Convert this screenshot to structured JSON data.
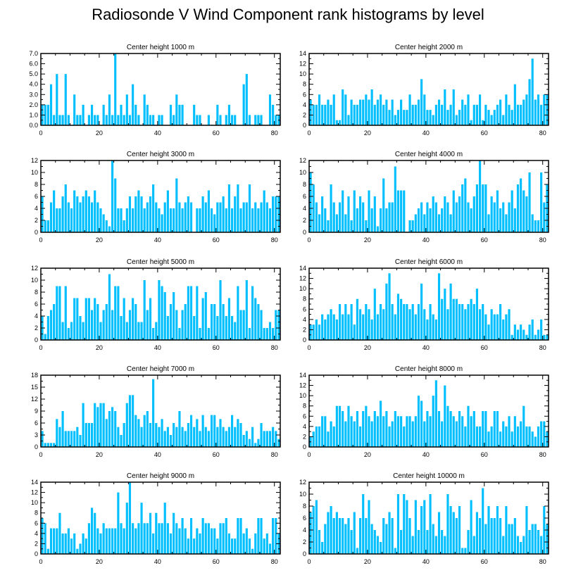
{
  "figure_title": "Radiosonde V Wind Component rank histograms by level",
  "colors": {
    "bar": "#00BFFF",
    "axis": "#000000"
  },
  "chart_data": [
    {
      "type": "bar",
      "title": "Center height 1000 m",
      "xlim": [
        0,
        82
      ],
      "ylim": [
        0,
        7
      ],
      "xticks": [
        0,
        20,
        40,
        60,
        80
      ],
      "yticks": [
        0,
        1,
        2,
        3,
        4,
        5,
        6,
        7
      ],
      "ytick_labels": [
        "0.0",
        "1.0",
        "2.0",
        "3.0",
        "4.0",
        "5.0",
        "6.0",
        "7.0"
      ],
      "values": [
        2,
        2,
        2,
        4,
        1,
        5,
        1,
        1,
        5,
        1,
        0,
        3,
        1,
        1,
        2,
        0,
        1,
        2,
        1,
        1,
        0,
        2,
        1,
        3,
        1,
        7,
        1,
        2,
        1,
        3,
        1,
        4,
        2,
        1,
        0,
        3,
        2,
        1,
        1,
        0,
        1,
        1,
        0,
        0,
        2,
        1,
        3,
        2,
        2,
        0,
        0,
        0,
        2,
        1,
        1,
        0,
        0,
        1,
        0,
        0,
        2,
        1,
        0,
        1,
        2,
        1,
        1,
        0,
        0,
        4,
        5,
        1,
        0,
        1,
        1,
        1,
        0,
        0,
        3,
        2,
        1,
        1
      ],
      "xlabel": "",
      "ylabel": ""
    },
    {
      "type": "bar",
      "title": "Center height 2000 m",
      "xlim": [
        0,
        82
      ],
      "ylim": [
        0,
        14
      ],
      "xticks": [
        0,
        20,
        40,
        60,
        80
      ],
      "yticks": [
        0,
        2,
        4,
        6,
        8,
        10,
        12,
        14
      ],
      "ytick_labels": [
        "0",
        "2",
        "4",
        "6",
        "8",
        "10",
        "12",
        "14"
      ],
      "values": [
        5,
        4,
        4,
        6,
        4,
        4,
        5,
        4,
        6,
        1,
        1,
        7,
        6,
        2,
        5,
        4,
        4,
        5,
        5,
        6,
        5,
        7,
        4,
        5,
        6,
        4,
        5,
        3,
        5,
        2,
        3,
        5,
        3,
        3,
        6,
        4,
        4,
        5,
        9,
        6,
        3,
        3,
        2,
        4,
        5,
        4,
        7,
        3,
        4,
        7,
        2,
        3,
        5,
        4,
        6,
        1,
        4,
        4,
        6,
        1,
        4,
        3,
        2,
        3,
        4,
        5,
        2,
        6,
        4,
        3,
        8,
        4,
        4,
        5,
        6,
        9,
        13,
        5,
        6,
        4,
        6,
        6
      ],
      "xlabel": "",
      "ylabel": ""
    },
    {
      "type": "bar",
      "title": "Center height 3000 m",
      "xlim": [
        0,
        82
      ],
      "ylim": [
        0,
        12
      ],
      "xticks": [
        0,
        20,
        40,
        60,
        80
      ],
      "yticks": [
        0,
        2,
        4,
        6,
        8,
        10,
        12
      ],
      "ytick_labels": [
        "0",
        "2",
        "4",
        "6",
        "8",
        "10",
        "12"
      ],
      "values": [
        6,
        2,
        2,
        5,
        7,
        4,
        4,
        6,
        8,
        5,
        4,
        7,
        6,
        5,
        6,
        7,
        6,
        5,
        7,
        5,
        4,
        3,
        2,
        1,
        12,
        9,
        4,
        4,
        2,
        4,
        6,
        4,
        6,
        7,
        6,
        4,
        5,
        6,
        8,
        5,
        4,
        3,
        5,
        7,
        4,
        4,
        9,
        5,
        4,
        5,
        6,
        5,
        0,
        4,
        4,
        6,
        5,
        7,
        4,
        3,
        5,
        5,
        6,
        4,
        8,
        4,
        6,
        8,
        4,
        5,
        5,
        8,
        4,
        5,
        4,
        5,
        7,
        5,
        4,
        6,
        6,
        6
      ],
      "xlabel": "",
      "ylabel": ""
    },
    {
      "type": "bar",
      "title": "Center height 4000 m",
      "xlim": [
        0,
        82
      ],
      "ylim": [
        0,
        12
      ],
      "xticks": [
        0,
        20,
        40,
        60,
        80
      ],
      "yticks": [
        0,
        2,
        4,
        6,
        8,
        10,
        12
      ],
      "ytick_labels": [
        "0",
        "2",
        "4",
        "6",
        "8",
        "10",
        "12"
      ],
      "values": [
        10,
        8,
        5,
        3,
        6,
        4,
        2,
        8,
        5,
        3,
        5,
        7,
        3,
        6,
        2,
        7,
        4,
        6,
        5,
        2,
        7,
        4,
        6,
        1,
        4,
        9,
        4,
        5,
        5,
        11,
        7,
        7,
        7,
        0,
        2,
        2,
        3,
        4,
        5,
        3,
        5,
        4,
        6,
        5,
        3,
        4,
        6,
        5,
        3,
        7,
        5,
        6,
        8,
        9,
        5,
        4,
        6,
        8,
        12,
        8,
        8,
        3,
        6,
        5,
        7,
        4,
        5,
        3,
        5,
        7,
        4,
        8,
        9,
        7,
        6,
        10,
        3,
        2,
        2,
        10,
        5,
        8
      ],
      "xlabel": "",
      "ylabel": ""
    },
    {
      "type": "bar",
      "title": "Center height 5000 m",
      "xlim": [
        0,
        82
      ],
      "ylim": [
        0,
        12
      ],
      "xticks": [
        0,
        20,
        40,
        60,
        80
      ],
      "yticks": [
        0,
        2,
        4,
        6,
        8,
        10,
        12
      ],
      "ytick_labels": [
        "0",
        "2",
        "4",
        "6",
        "8",
        "10",
        "12"
      ],
      "values": [
        4,
        1,
        4,
        5,
        6,
        9,
        9,
        3,
        9,
        2,
        3,
        7,
        7,
        4,
        3,
        7,
        7,
        5,
        7,
        6,
        3,
        5,
        6,
        11,
        5,
        9,
        9,
        4,
        7,
        3,
        5,
        7,
        6,
        3,
        3,
        10,
        5,
        7,
        2,
        3,
        10,
        9,
        8,
        4,
        6,
        8,
        5,
        2,
        5,
        6,
        9,
        9,
        4,
        9,
        2,
        7,
        8,
        2,
        6,
        6,
        4,
        10,
        6,
        4,
        7,
        4,
        3,
        9,
        5,
        5,
        10,
        2,
        9,
        7,
        6,
        5,
        2,
        2,
        3,
        2,
        5,
        5
      ],
      "xlabel": "",
      "ylabel": ""
    },
    {
      "type": "bar",
      "title": "Center height 6000 m",
      "xlim": [
        0,
        82
      ],
      "ylim": [
        0,
        14
      ],
      "xticks": [
        0,
        20,
        40,
        60,
        80
      ],
      "yticks": [
        0,
        2,
        4,
        6,
        8,
        10,
        12,
        14
      ],
      "ytick_labels": [
        "0",
        "2",
        "4",
        "6",
        "8",
        "10",
        "12",
        "14"
      ],
      "values": [
        3,
        3,
        4,
        3,
        5,
        4,
        5,
        6,
        5,
        4,
        7,
        5,
        7,
        5,
        7,
        3,
        8,
        6,
        5,
        7,
        6,
        4,
        10,
        5,
        7,
        6,
        11,
        13,
        7,
        5,
        9,
        8,
        7,
        7,
        6,
        7,
        5,
        7,
        11,
        6,
        4,
        7,
        5,
        4,
        13,
        8,
        10,
        6,
        11,
        8,
        8,
        7,
        7,
        6,
        7,
        8,
        7,
        10,
        6,
        7,
        5,
        3,
        6,
        5,
        5,
        7,
        4,
        5,
        6,
        1,
        3,
        2,
        3,
        2,
        1,
        3,
        4,
        1,
        2,
        4,
        1,
        1
      ],
      "xlabel": "",
      "ylabel": ""
    },
    {
      "type": "bar",
      "title": "Center height 7000 m",
      "xlim": [
        0,
        82
      ],
      "ylim": [
        0,
        18
      ],
      "xticks": [
        0,
        20,
        40,
        60,
        80
      ],
      "yticks": [
        0,
        3,
        6,
        9,
        12,
        15,
        18
      ],
      "ytick_labels": [
        "0",
        "3",
        "6",
        "9",
        "12",
        "15",
        "18"
      ],
      "values": [
        4,
        1,
        1,
        1,
        1,
        7,
        5,
        9,
        4,
        4,
        4,
        4,
        5,
        3,
        11,
        6,
        6,
        6,
        11,
        10,
        11,
        11,
        7,
        9,
        10,
        9,
        5,
        3,
        6,
        11,
        13,
        13,
        8,
        7,
        5,
        8,
        9,
        6,
        17,
        6,
        5,
        7,
        4,
        5,
        3,
        6,
        5,
        9,
        5,
        4,
        6,
        8,
        5,
        7,
        4,
        8,
        5,
        4,
        8,
        8,
        5,
        7,
        5,
        4,
        5,
        8,
        5,
        7,
        6,
        3,
        4,
        2,
        5,
        1,
        2,
        6,
        4,
        4,
        4,
        5,
        4,
        2
      ],
      "xlabel": "",
      "ylabel": ""
    },
    {
      "type": "bar",
      "title": "Center height 8000 m",
      "xlim": [
        0,
        82
      ],
      "ylim": [
        0,
        14
      ],
      "xticks": [
        0,
        20,
        40,
        60,
        80
      ],
      "yticks": [
        0,
        2,
        4,
        6,
        8,
        10,
        12,
        14
      ],
      "ytick_labels": [
        "0",
        "2",
        "4",
        "6",
        "8",
        "10",
        "12",
        "14"
      ],
      "values": [
        2,
        3,
        4,
        4,
        6,
        6,
        3,
        5,
        4,
        8,
        8,
        7,
        5,
        8,
        6,
        5,
        7,
        4,
        7,
        8,
        6,
        5,
        7,
        6,
        9,
        6,
        7,
        4,
        5,
        7,
        6,
        6,
        4,
        6,
        6,
        5,
        6,
        10,
        9,
        5,
        7,
        6,
        10,
        13,
        7,
        5,
        12,
        8,
        7,
        6,
        5,
        7,
        6,
        4,
        8,
        6,
        7,
        4,
        4,
        7,
        7,
        3,
        4,
        7,
        7,
        3,
        5,
        4,
        6,
        3,
        6,
        4,
        5,
        8,
        4,
        4,
        3,
        2,
        4,
        5,
        5,
        3
      ],
      "xlabel": "",
      "ylabel": ""
    },
    {
      "type": "bar",
      "title": "Center height 9000 m",
      "xlim": [
        0,
        82
      ],
      "ylim": [
        0,
        14
      ],
      "xticks": [
        0,
        20,
        40,
        60,
        80
      ],
      "yticks": [
        0,
        2,
        4,
        6,
        8,
        10,
        12,
        14
      ],
      "ytick_labels": [
        "0",
        "2",
        "4",
        "6",
        "8",
        "10",
        "12",
        "14"
      ],
      "values": [
        7,
        6,
        1,
        5,
        5,
        5,
        8,
        4,
        4,
        5,
        3,
        4,
        1,
        2,
        4,
        3,
        6,
        9,
        8,
        5,
        4,
        6,
        5,
        5,
        5,
        5,
        12,
        6,
        5,
        10,
        14,
        6,
        5,
        6,
        10,
        6,
        6,
        8,
        4,
        8,
        6,
        6,
        10,
        6,
        4,
        8,
        6,
        5,
        7,
        5,
        3,
        7,
        3,
        5,
        4,
        7,
        6,
        6,
        5,
        5,
        3,
        6,
        6,
        7,
        4,
        3,
        3,
        7,
        7,
        4,
        5,
        3,
        1,
        4,
        7,
        7,
        3,
        4,
        2,
        7,
        7,
        4
      ],
      "xlabel": "",
      "ylabel": ""
    },
    {
      "type": "bar",
      "title": "Center height 10000 m",
      "xlim": [
        0,
        82
      ],
      "ylim": [
        0,
        12
      ],
      "xticks": [
        0,
        20,
        40,
        60,
        80
      ],
      "yticks": [
        0,
        2,
        4,
        6,
        8,
        10,
        12
      ],
      "ytick_labels": [
        "0",
        "2",
        "4",
        "6",
        "8",
        "10",
        "12"
      ],
      "values": [
        7,
        8,
        9,
        4,
        2,
        5,
        7,
        8,
        6,
        7,
        6,
        6,
        5,
        6,
        4,
        7,
        1,
        6,
        10,
        6,
        9,
        5,
        4,
        3,
        2,
        6,
        5,
        7,
        6,
        1,
        10,
        4,
        10,
        9,
        6,
        3,
        9,
        4,
        8,
        9,
        4,
        10,
        5,
        3,
        7,
        4,
        3,
        10,
        8,
        7,
        6,
        8,
        1,
        1,
        4,
        9,
        3,
        7,
        6,
        11,
        5,
        8,
        6,
        6,
        8,
        6,
        3,
        8,
        5,
        5,
        6,
        3,
        2,
        3,
        8,
        4,
        5,
        5,
        4,
        3,
        8,
        5
      ],
      "xlabel": "",
      "ylabel": ""
    }
  ]
}
